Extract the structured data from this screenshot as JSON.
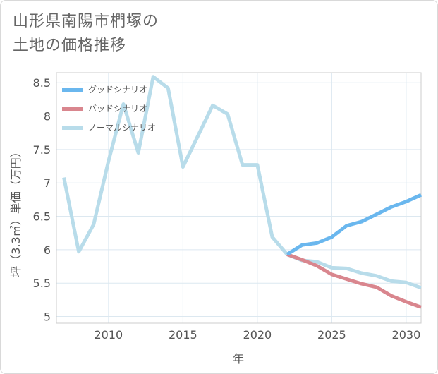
{
  "title_line1": "山形県南陽市椚塚の",
  "title_line2": "土地の価格推移",
  "chart_data": {
    "type": "line",
    "xlabel": "年",
    "ylabel": "坪（3.3㎡）単価（万円）",
    "xlim": [
      2006.5,
      2031
    ],
    "ylim": [
      4.9,
      8.65
    ],
    "xticks": [
      2010,
      2015,
      2020,
      2025,
      2030
    ],
    "yticks": [
      5,
      5.5,
      6,
      6.5,
      7,
      7.5,
      8,
      8.5
    ],
    "ytick_labels": [
      "5",
      "5.5",
      "6",
      "6.5",
      "7",
      "7.5",
      "8",
      "8.5"
    ],
    "grid": true,
    "legend_position": "top-left",
    "series": [
      {
        "name": "グッドシナリオ",
        "color": "#6ab7ee",
        "x": [
          2022,
          2023,
          2024,
          2025,
          2026,
          2027,
          2028,
          2029,
          2030,
          2031
        ],
        "y": [
          5.93,
          6.07,
          6.1,
          6.19,
          6.36,
          6.42,
          6.53,
          6.64,
          6.72,
          6.82
        ]
      },
      {
        "name": "バッドシナリオ",
        "color": "#d9868e",
        "x": [
          2022,
          2023,
          2024,
          2025,
          2026,
          2027,
          2028,
          2029,
          2030,
          2031
        ],
        "y": [
          5.93,
          5.85,
          5.76,
          5.63,
          5.56,
          5.49,
          5.44,
          5.31,
          5.22,
          5.14
        ]
      },
      {
        "name": "ノーマルシナリオ",
        "color": "#b8dcea",
        "x": [
          2007,
          2008,
          2009,
          2010,
          2011,
          2012,
          2013,
          2014,
          2015,
          2016,
          2017,
          2018,
          2019,
          2020,
          2021,
          2022,
          2023,
          2024,
          2025,
          2026,
          2027,
          2028,
          2029,
          2030,
          2031
        ],
        "y": [
          7.08,
          5.97,
          6.38,
          7.33,
          8.18,
          7.45,
          8.59,
          8.42,
          7.24,
          7.7,
          8.16,
          8.03,
          7.27,
          7.27,
          6.19,
          5.93,
          5.84,
          5.82,
          5.73,
          5.72,
          5.65,
          5.61,
          5.53,
          5.51,
          5.43
        ]
      }
    ]
  }
}
